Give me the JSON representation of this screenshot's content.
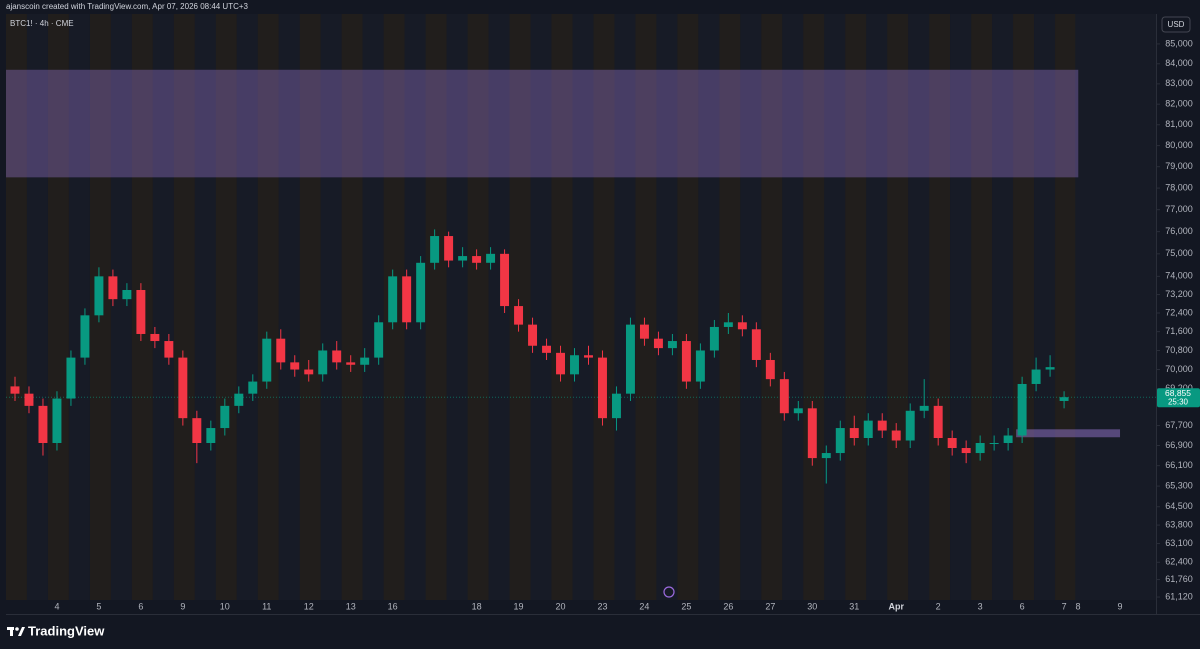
{
  "header": {
    "credit": "ajanscoin created with TradingView.com, Apr 07, 2026 08:44 UTC+3",
    "brand": "TradingView"
  },
  "chart_data": {
    "type": "candlestick",
    "title": "BTC1! · 4h · CME",
    "currency": "USD",
    "log_scale": true,
    "grid": false,
    "up_color": "#089981",
    "down_color": "#f23645",
    "zone_color": "#9575cd",
    "ylim": [
      60505,
      86634
    ],
    "yticks": [
      {
        "value": 85000,
        "label": "85,000"
      },
      {
        "value": 84000,
        "label": "84,000"
      },
      {
        "value": 83000,
        "label": "83,000"
      },
      {
        "value": 82000,
        "label": "82,000"
      },
      {
        "value": 81000,
        "label": "81,000"
      },
      {
        "value": 80000,
        "label": "80,000"
      },
      {
        "value": 79000,
        "label": "79,000"
      },
      {
        "value": 78000,
        "label": "78,000"
      },
      {
        "value": 77000,
        "label": "77,000"
      },
      {
        "value": 76000,
        "label": "76,000"
      },
      {
        "value": 75000,
        "label": "75,000"
      },
      {
        "value": 74000,
        "label": "74,000"
      },
      {
        "value": 73200,
        "label": "73,200"
      },
      {
        "value": 72400,
        "label": "72,400"
      },
      {
        "value": 71600,
        "label": "71,600"
      },
      {
        "value": 70800,
        "label": "70,800"
      },
      {
        "value": 70000,
        "label": "70,000"
      },
      {
        "value": 69200,
        "label": "69,200"
      },
      {
        "value": 67700,
        "label": "67,700"
      },
      {
        "value": 66900,
        "label": "66,900"
      },
      {
        "value": 66100,
        "label": "66,100"
      },
      {
        "value": 65300,
        "label": "65,300"
      },
      {
        "value": 64500,
        "label": "64,500"
      },
      {
        "value": 63800,
        "label": "63,800"
      },
      {
        "value": 63100,
        "label": "63,100"
      },
      {
        "value": 62400,
        "label": "62,400"
      },
      {
        "value": 61760,
        "label": "61,760"
      },
      {
        "value": 61120,
        "label": "61,120"
      }
    ],
    "categories": [
      null,
      null,
      null,
      "4",
      null,
      null,
      "5",
      null,
      null,
      "6",
      null,
      null,
      "9",
      null,
      null,
      "10",
      null,
      null,
      "11",
      null,
      null,
      "12",
      null,
      null,
      "13",
      null,
      null,
      "16",
      null,
      null,
      null,
      null,
      null,
      "18",
      null,
      null,
      "19",
      null,
      null,
      "20",
      null,
      null,
      "23",
      null,
      null,
      "24",
      null,
      null,
      "25",
      null,
      null,
      "26",
      null,
      null,
      "27",
      null,
      null,
      "30",
      null,
      null,
      "31",
      null,
      null,
      "Apr",
      null,
      null,
      "2",
      null,
      null,
      "3",
      null,
      null,
      "6",
      null,
      null,
      "7",
      "8",
      null,
      null,
      "9",
      null,
      null
    ],
    "open": [
      69300,
      69000,
      68500,
      67000,
      68800,
      70500,
      72300,
      74000,
      73000,
      73400,
      71500,
      71200,
      70500,
      68000,
      67000,
      67600,
      68500,
      69000,
      69500,
      71300,
      70300,
      70000,
      69800,
      70800,
      70300,
      70200,
      70500,
      72000,
      74000,
      72000,
      74600,
      75800,
      74700,
      74900,
      74600,
      75000,
      72700,
      71900,
      71000,
      70700,
      69800,
      70600,
      70500,
      68000,
      69000,
      71900,
      71300,
      70900,
      71200,
      69500,
      70800,
      71800,
      72000,
      71700,
      70400,
      69600,
      68200,
      68400,
      66400,
      66600,
      67600,
      67200,
      67900,
      67500,
      67100,
      68300,
      68500,
      67200,
      66800,
      66600,
      67000,
      67000,
      67300,
      69400,
      70000,
      68700,
      null,
      null,
      null,
      null,
      null,
      null
    ],
    "high": [
      69700,
      69300,
      68800,
      69100,
      70800,
      72600,
      74400,
      74300,
      73700,
      73700,
      71800,
      71500,
      70800,
      68300,
      67900,
      68800,
      69300,
      69800,
      71600,
      71700,
      70600,
      70400,
      71100,
      71200,
      70600,
      70900,
      72300,
      74300,
      74300,
      74900,
      76100,
      76000,
      75300,
      75200,
      75300,
      75200,
      73000,
      72200,
      71300,
      71000,
      70900,
      71000,
      70800,
      69300,
      72200,
      72200,
      71600,
      71500,
      71500,
      71100,
      72100,
      72400,
      72300,
      72000,
      70700,
      69900,
      68700,
      68700,
      66900,
      67900,
      68100,
      68200,
      68200,
      67800,
      68600,
      69600,
      68800,
      67500,
      67100,
      67300,
      67300,
      67600,
      69700,
      70500,
      70600,
      69100,
      null,
      null,
      null,
      null,
      null,
      null
    ],
    "low": [
      68700,
      68200,
      66500,
      66700,
      68500,
      70200,
      72000,
      72700,
      72700,
      71200,
      70900,
      70200,
      67700,
      66200,
      66700,
      67300,
      68200,
      68700,
      69200,
      70000,
      69700,
      69500,
      69500,
      70000,
      69900,
      69900,
      70200,
      71700,
      71700,
      71700,
      74300,
      74400,
      74400,
      74300,
      74300,
      72400,
      71600,
      70700,
      70400,
      69500,
      69500,
      70200,
      67700,
      67500,
      68700,
      71000,
      70600,
      70600,
      69200,
      69200,
      70500,
      71500,
      71400,
      70100,
      69300,
      67900,
      67900,
      66100,
      65400,
      66300,
      66900,
      66900,
      67200,
      66800,
      66800,
      68000,
      66900,
      66500,
      66200,
      66300,
      66700,
      66700,
      67000,
      69100,
      69700,
      68400,
      null,
      null,
      null,
      null,
      null,
      null
    ],
    "close": [
      69000,
      68500,
      67000,
      68800,
      70500,
      72300,
      74000,
      73000,
      73400,
      71500,
      71200,
      70500,
      68000,
      67000,
      67600,
      68500,
      69000,
      69500,
      71300,
      70300,
      70000,
      69800,
      70800,
      70300,
      70200,
      70500,
      72000,
      74000,
      72000,
      74600,
      75800,
      74700,
      74900,
      74600,
      75000,
      72700,
      71900,
      71000,
      70700,
      69800,
      70600,
      70500,
      68000,
      69000,
      71900,
      71300,
      70900,
      71200,
      69500,
      70800,
      71800,
      72000,
      71700,
      70400,
      69600,
      68200,
      68400,
      66400,
      66600,
      67600,
      67200,
      67900,
      67500,
      67100,
      68300,
      68500,
      67200,
      66800,
      66600,
      67000,
      67000,
      67300,
      69400,
      70000,
      70100,
      68855,
      null,
      null,
      null,
      null,
      null,
      null
    ],
    "zones": [
      {
        "top": 83700,
        "bottom": 78500
      },
      {
        "top": 67550,
        "bottom": 67230
      }
    ],
    "last_price": {
      "value": 68855,
      "label": "68,855"
    },
    "countdown": "25:30"
  }
}
